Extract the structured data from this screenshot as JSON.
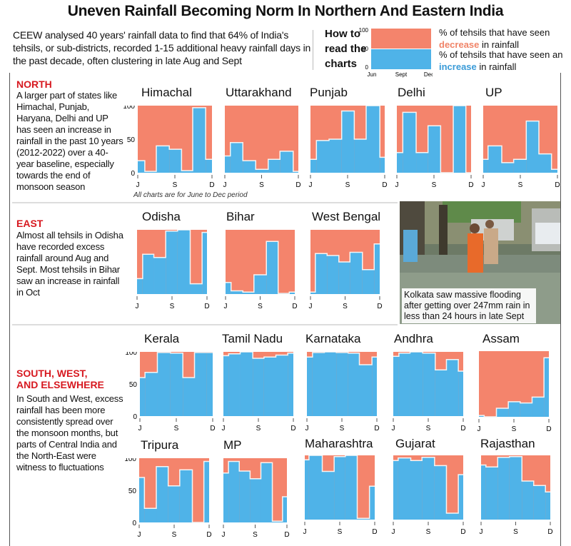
{
  "title": "Uneven Rainfall Becoming Norm In Northern And Eastern India",
  "intro": "CEEW analysed 40 years' rainfall data to find that 64% of India's tehsils, or sub-districts, recorded 1-15 additional heavy rainfall days in the past decade, often clustering in late Aug and Sept",
  "howto": {
    "label_lines": [
      "How to",
      "read the",
      "charts"
    ],
    "y_ticks": [
      "100",
      "50",
      "0"
    ],
    "x_ticks": [
      "Jun",
      "Sept",
      "Dec"
    ],
    "decrease_pre": "% of tehsils that have seen ",
    "decrease_word": "decrease",
    "decrease_post": " in rainfall",
    "increase_pre": "% of tehsils that have seen an ",
    "increase_word": "increase",
    "increase_post": " in rainfall"
  },
  "colors": {
    "increase": "#4fb3e8",
    "decrease": "#f4846c",
    "section_head": "#d71920"
  },
  "sections": {
    "north": {
      "heading": "NORTH",
      "text": "A larger part of states like Himachal, Punjab, Haryana, Delhi and UP has seen an increase in rainfall in the past 10 years (2012-2022) over a 40-year baseline, especially towards the end of monsoon season",
      "note": "All charts are for June to Dec period"
    },
    "east": {
      "heading": "EAST",
      "text": "Almost all tehsils in Odisha have recorded excess rainfall around Aug and Sept. Most tehsils in Bihar saw an increase in rainfall in Oct"
    },
    "south": {
      "heading_lines": [
        "SOUTH, WEST,",
        "AND ELSEWHERE"
      ],
      "text": "In South and West, excess rainfall has been more consistently spread over the monsoon months, but parts of Central India and the North-East were witness to fluctuations"
    }
  },
  "photo_caption": "Kolkata saw massive flooding after getting over 247mm rain in less than 24 hours in late Sept",
  "chart_data": [
    {
      "type": "area",
      "title": "Himachal",
      "group": "north",
      "ylim": [
        0,
        100
      ],
      "y_ticks": [
        "100",
        "50",
        "0"
      ],
      "x_ticks": [
        "J",
        "S",
        "D"
      ],
      "breaks": [
        0,
        0.095,
        0.25,
        0.425,
        0.59,
        0.74,
        0.915,
        1
      ],
      "values": [
        18,
        2,
        40,
        35,
        3,
        97,
        20
      ]
    },
    {
      "type": "area",
      "title": "Uttarakhand",
      "group": "north",
      "ylim": [
        0,
        100
      ],
      "x_ticks": [
        "J",
        "S",
        "D"
      ],
      "breaks": [
        0,
        0.075,
        0.245,
        0.42,
        0.59,
        0.75,
        0.93,
        1
      ],
      "values": [
        25,
        45,
        18,
        5,
        20,
        32,
        2
      ]
    },
    {
      "type": "area",
      "title": "Punjab",
      "group": "north",
      "ylim": [
        0,
        100
      ],
      "x_ticks": [
        "J",
        "S",
        "D"
      ],
      "breaks": [
        0,
        0.08,
        0.25,
        0.42,
        0.59,
        0.75,
        0.935,
        1
      ],
      "values": [
        20,
        48,
        50,
        92,
        50,
        100,
        23
      ]
    },
    {
      "type": "area",
      "title": "Delhi",
      "group": "north",
      "ylim": [
        0,
        100
      ],
      "x_ticks": [
        "J",
        "S",
        "D"
      ],
      "breaks": [
        0,
        0.08,
        0.26,
        0.42,
        0.59,
        0.76,
        0.93,
        1
      ],
      "values": [
        30,
        90,
        30,
        70,
        0,
        100,
        0
      ]
    },
    {
      "type": "area",
      "title": "UP",
      "group": "north",
      "ylim": [
        0,
        100
      ],
      "x_ticks": [
        "J",
        "S",
        "D"
      ],
      "breaks": [
        0,
        0.065,
        0.25,
        0.41,
        0.58,
        0.75,
        0.92,
        1
      ],
      "values": [
        20,
        40,
        15,
        20,
        77,
        28,
        5
      ]
    },
    {
      "type": "area",
      "title": "Odisha",
      "group": "east",
      "ylim": [
        0,
        100
      ],
      "x_ticks": [
        "J",
        "S",
        "D"
      ],
      "breaks": [
        0,
        0.08,
        0.24,
        0.41,
        0.58,
        0.76,
        0.93,
        1
      ],
      "values": [
        24,
        62,
        57,
        98,
        100,
        16,
        96
      ]
    },
    {
      "type": "area",
      "title": "Bihar",
      "group": "east",
      "ylim": [
        0,
        100
      ],
      "x_ticks": [
        "J",
        "S",
        "D"
      ],
      "breaks": [
        0,
        0.08,
        0.25,
        0.41,
        0.59,
        0.76,
        0.92,
        1
      ],
      "values": [
        18,
        5,
        3,
        30,
        82,
        1,
        3
      ]
    },
    {
      "type": "area",
      "title": "West Bengal",
      "group": "east",
      "ylim": [
        0,
        100
      ],
      "x_ticks": [
        "J",
        "S",
        "D"
      ],
      "breaks": [
        0,
        0.07,
        0.24,
        0.41,
        0.57,
        0.75,
        0.92,
        1
      ],
      "values": [
        3,
        63,
        60,
        50,
        65,
        38,
        78
      ]
    },
    {
      "type": "area",
      "title": "Kerala",
      "group": "south",
      "ylim": [
        0,
        100
      ],
      "y_ticks": [
        "100",
        "50",
        "0"
      ],
      "x_ticks": [
        "J",
        "S",
        "D"
      ],
      "breaks": [
        0,
        0.07,
        0.24,
        0.42,
        0.59,
        0.75,
        0.92,
        1
      ],
      "values": [
        60,
        68,
        99,
        98,
        60,
        99,
        99
      ]
    },
    {
      "type": "area",
      "title": "Tamil Nadu",
      "group": "south",
      "ylim": [
        0,
        100
      ],
      "x_ticks": [
        "J",
        "S",
        "D"
      ],
      "breaks": [
        0,
        0.075,
        0.24,
        0.42,
        0.58,
        0.75,
        0.92,
        1
      ],
      "values": [
        94,
        97,
        100,
        90,
        92,
        95,
        98
      ]
    },
    {
      "type": "area",
      "title": "Karnataka",
      "group": "south",
      "ylim": [
        0,
        100
      ],
      "x_ticks": [
        "J",
        "S",
        "D"
      ],
      "breaks": [
        0,
        0.08,
        0.25,
        0.42,
        0.59,
        0.75,
        0.93,
        1
      ],
      "values": [
        92,
        99,
        100,
        99,
        98,
        80,
        92
      ]
    },
    {
      "type": "area",
      "title": "Andhra",
      "group": "south",
      "ylim": [
        0,
        100
      ],
      "x_ticks": [
        "J",
        "S",
        "D"
      ],
      "breaks": [
        0,
        0.08,
        0.24,
        0.42,
        0.6,
        0.76,
        0.93,
        1
      ],
      "values": [
        93,
        98,
        100,
        98,
        72,
        88,
        70
      ]
    },
    {
      "type": "area",
      "title": "Assam",
      "group": "south",
      "ylim": [
        0,
        100
      ],
      "x_ticks": [
        "J",
        "S",
        "D"
      ],
      "breaks": [
        0,
        0.075,
        0.25,
        0.42,
        0.59,
        0.76,
        0.93,
        1
      ],
      "values": [
        2,
        0,
        13,
        23,
        21,
        30,
        90
      ]
    },
    {
      "type": "area",
      "title": "Tripura",
      "group": "south",
      "ylim": [
        0,
        100
      ],
      "y_ticks": [
        "100",
        "50",
        "0"
      ],
      "x_ticks": [
        "J",
        "S",
        "D"
      ],
      "breaks": [
        0,
        0.075,
        0.245,
        0.415,
        0.58,
        0.76,
        0.925,
        1
      ],
      "values": [
        70,
        22,
        87,
        57,
        82,
        0,
        95
      ]
    },
    {
      "type": "area",
      "title": "MP",
      "group": "south",
      "ylim": [
        0,
        100
      ],
      "x_ticks": [
        "J",
        "S",
        "D"
      ],
      "breaks": [
        0,
        0.08,
        0.25,
        0.42,
        0.59,
        0.77,
        0.93,
        1
      ],
      "values": [
        77,
        95,
        80,
        68,
        93,
        2,
        40
      ]
    },
    {
      "type": "area",
      "title": "Maharashtra",
      "group": "south",
      "ylim": [
        0,
        100
      ],
      "x_ticks": [
        "J",
        "S",
        "D"
      ],
      "breaks": [
        0,
        0.06,
        0.25,
        0.42,
        0.58,
        0.75,
        0.925,
        1
      ],
      "values": [
        93,
        100,
        75,
        98,
        100,
        2,
        52
      ]
    },
    {
      "type": "area",
      "title": "Gujarat",
      "group": "south",
      "ylim": [
        0,
        100
      ],
      "x_ticks": [
        "J",
        "S",
        "D"
      ],
      "breaks": [
        0,
        0.07,
        0.25,
        0.41,
        0.59,
        0.76,
        0.93,
        1
      ],
      "values": [
        92,
        96,
        92,
        97,
        84,
        10,
        70
      ]
    },
    {
      "type": "area",
      "title": "Rajasthan",
      "group": "south",
      "ylim": [
        0,
        100
      ],
      "x_ticks": [
        "J",
        "S",
        "D"
      ],
      "breaks": [
        0,
        0.07,
        0.24,
        0.41,
        0.59,
        0.76,
        0.93,
        1
      ],
      "values": [
        85,
        82,
        97,
        98,
        60,
        53,
        43
      ]
    }
  ]
}
